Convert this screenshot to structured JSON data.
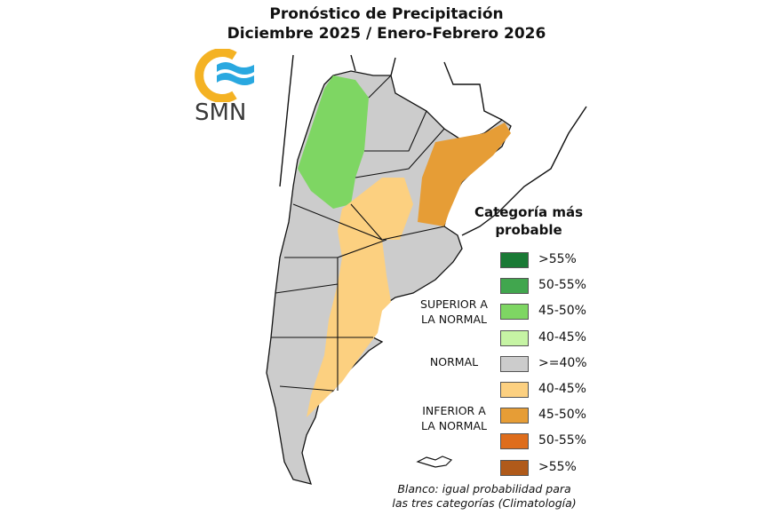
{
  "title": {
    "line1": "Pronóstico de Precipitación",
    "line2": "Diciembre 2025 / Enero-Febrero 2026"
  },
  "logo": {
    "text": "SMN",
    "colors": {
      "ring": "#f4b223",
      "waves": "#29a8e0"
    }
  },
  "legend": {
    "title_line1": "Categoría más",
    "title_line2": "probable",
    "groups": [
      {
        "label_line1": "SUPERIOR A",
        "label_line2": "LA NORMAL"
      },
      {
        "label_line1": "NORMAL",
        "label_line2": ""
      },
      {
        "label_line1": "INFERIOR A",
        "label_line2": "LA NORMAL"
      }
    ],
    "items": [
      {
        "label": ">55%",
        "color": "#1a7a35"
      },
      {
        "label": "50-55%",
        "color": "#41a64e"
      },
      {
        "label": "45-50%",
        "color": "#7ed663"
      },
      {
        "label": "40-45%",
        "color": "#c6f4a4"
      },
      {
        "label": ">=40%",
        "color": "#cccccc"
      },
      {
        "label": "40-45%",
        "color": "#fcd080"
      },
      {
        "label": "45-50%",
        "color": "#e69d36"
      },
      {
        "label": "50-55%",
        "color": "#de6d1c"
      },
      {
        "label": ">55%",
        "color": "#b05a1a"
      }
    ],
    "note_line1": "Blanco: igual probabilidad para",
    "note_line2": "las tres categorías (Climatología)"
  }
}
